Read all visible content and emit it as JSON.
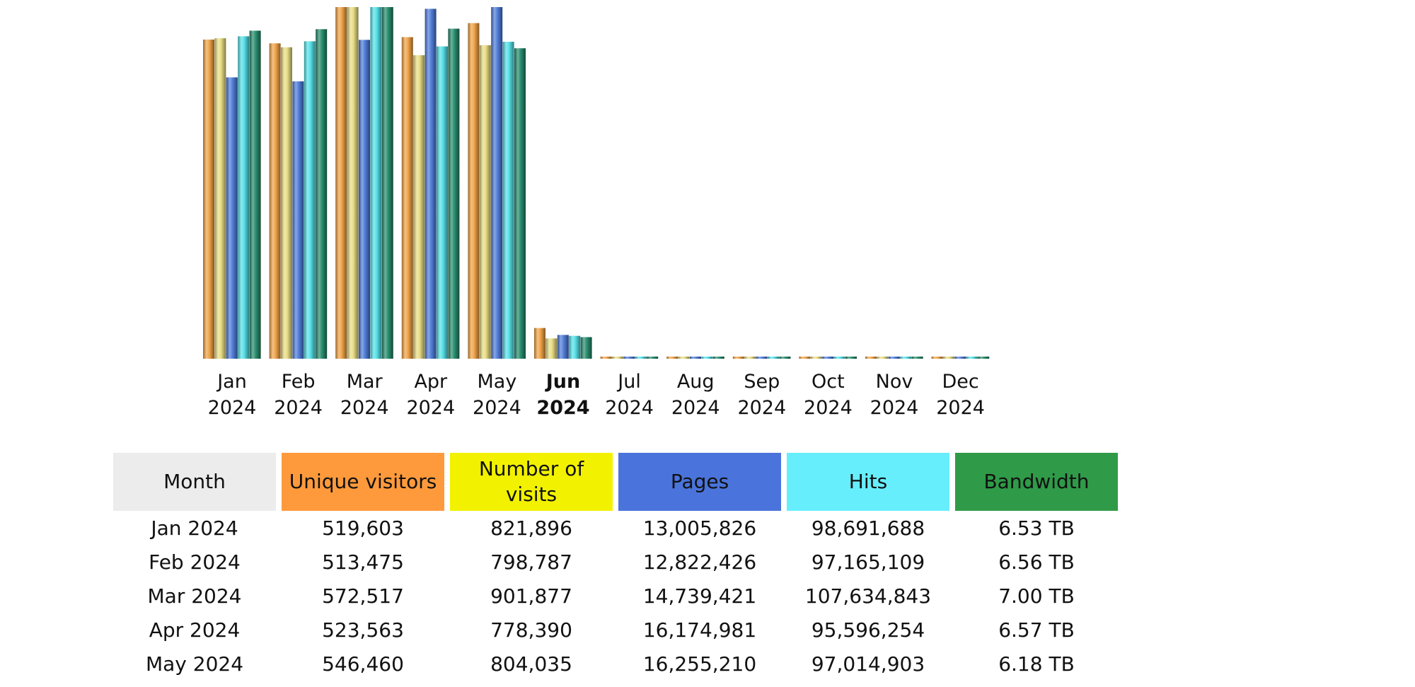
{
  "chart_data": {
    "type": "bar",
    "title": "",
    "xlabel": "",
    "ylabel": "",
    "categories": [
      {
        "month": "Jan",
        "year": "2024",
        "current": false
      },
      {
        "month": "Feb",
        "year": "2024",
        "current": false
      },
      {
        "month": "Mar",
        "year": "2024",
        "current": false
      },
      {
        "month": "Apr",
        "year": "2024",
        "current": false
      },
      {
        "month": "May",
        "year": "2024",
        "current": false
      },
      {
        "month": "Jun",
        "year": "2024",
        "current": true
      },
      {
        "month": "Jul",
        "year": "2024",
        "current": false
      },
      {
        "month": "Aug",
        "year": "2024",
        "current": false
      },
      {
        "month": "Sep",
        "year": "2024",
        "current": false
      },
      {
        "month": "Oct",
        "year": "2024",
        "current": false
      },
      {
        "month": "Nov",
        "year": "2024",
        "current": false
      },
      {
        "month": "Dec",
        "year": "2024",
        "current": false
      }
    ],
    "series": [
      {
        "name": "Unique visitors",
        "color": "#f0a040",
        "values": [
          519603,
          513475,
          572517,
          523563,
          546460,
          50000,
          0,
          0,
          0,
          0,
          0,
          0
        ]
      },
      {
        "name": "Number of visits",
        "color": "#e8dc80",
        "values": [
          821896,
          798787,
          901877,
          778390,
          804035,
          52000,
          0,
          0,
          0,
          0,
          0,
          0
        ]
      },
      {
        "name": "Pages",
        "color": "#4a78d8",
        "values": [
          13005826,
          12822426,
          14739421,
          16174981,
          16255210,
          1100000,
          0,
          0,
          0,
          0,
          0,
          0
        ]
      },
      {
        "name": "Hits",
        "color": "#50e0e8",
        "values": [
          98691688,
          97165109,
          107634843,
          95596254,
          97014903,
          7000000,
          0,
          0,
          0,
          0,
          0,
          0
        ]
      },
      {
        "name": "Bandwidth",
        "color": "#208868",
        "values": [
          6.53,
          6.56,
          7.0,
          6.57,
          6.18,
          0.43,
          0,
          0,
          0,
          0,
          0,
          0
        ]
      }
    ],
    "grid": false,
    "legend": "none"
  },
  "table": {
    "headers": {
      "month": "Month",
      "unique": "Unique visitors",
      "visits": "Number of visits",
      "pages": "Pages",
      "hits": "Hits",
      "bandwidth": "Bandwidth"
    },
    "header_colors": {
      "month": "#ececec",
      "unique": "#ff9a3c",
      "visits": "#f2f200",
      "pages": "#4a74dc",
      "hits": "#66eefc",
      "bandwidth": "#2f9a48"
    },
    "rows": [
      {
        "month": "Jan 2024",
        "unique": "519,603",
        "visits": "821,896",
        "pages": "13,005,826",
        "hits": "98,691,688",
        "bandwidth": "6.53 TB"
      },
      {
        "month": "Feb 2024",
        "unique": "513,475",
        "visits": "798,787",
        "pages": "12,822,426",
        "hits": "97,165,109",
        "bandwidth": "6.56 TB"
      },
      {
        "month": "Mar 2024",
        "unique": "572,517",
        "visits": "901,877",
        "pages": "14,739,421",
        "hits": "107,634,843",
        "bandwidth": "7.00 TB"
      },
      {
        "month": "Apr 2024",
        "unique": "523,563",
        "visits": "778,390",
        "pages": "16,174,981",
        "hits": "95,596,254",
        "bandwidth": "6.57 TB"
      },
      {
        "month": "May 2024",
        "unique": "546,460",
        "visits": "804,035",
        "pages": "16,255,210",
        "hits": "97,014,903",
        "bandwidth": "6.18 TB"
      }
    ]
  }
}
